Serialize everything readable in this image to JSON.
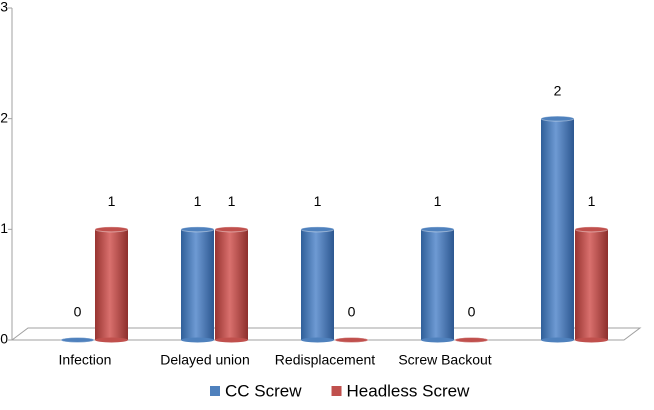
{
  "chart_data": {
    "type": "bar",
    "categories": [
      "Infection",
      "Delayed union",
      "Redisplacement",
      "Screw Backout",
      null
    ],
    "series": [
      {
        "name": "CC Screw",
        "color": "#4f81bd",
        "values": [
          0,
          1,
          1,
          1,
          2
        ]
      },
      {
        "name": "Headless Screw",
        "color": "#c0504d",
        "values": [
          1,
          1,
          0,
          0,
          1
        ]
      }
    ],
    "ylim": [
      0,
      3
    ],
    "yticks": [
      0,
      1,
      2,
      3
    ],
    "legend": "bottom"
  }
}
